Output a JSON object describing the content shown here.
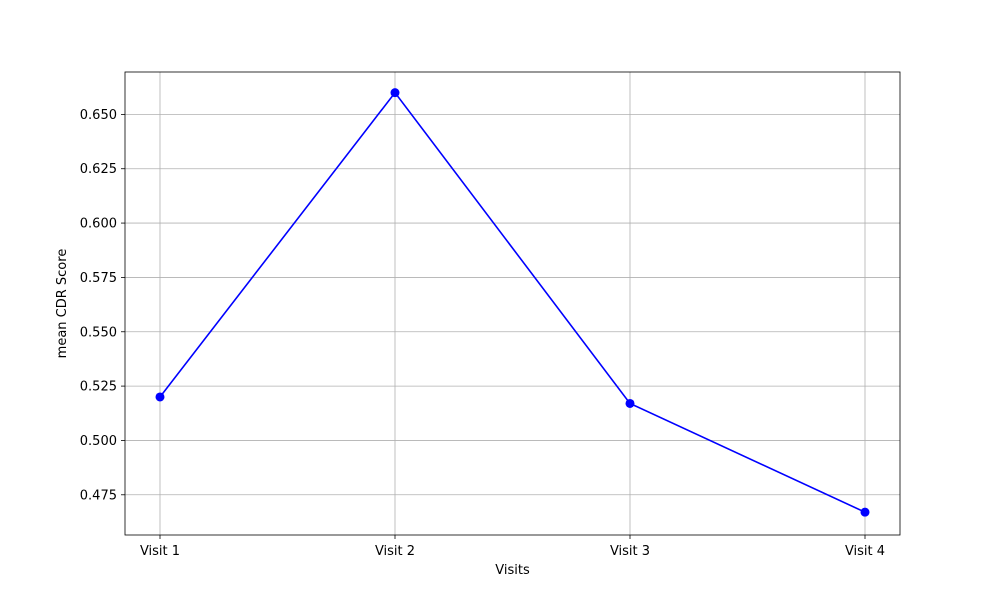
{
  "chart_data": {
    "type": "line",
    "title": "",
    "xlabel": "Visits",
    "ylabel": "mean CDR Score",
    "categories": [
      "Visit 1",
      "Visit 2",
      "Visit 3",
      "Visit 4"
    ],
    "series": [
      {
        "values": [
          0.52,
          0.66,
          0.517,
          0.467
        ],
        "color": "#0000ff",
        "marker": "circle"
      }
    ],
    "ylim": [
      0.4565,
      0.6695
    ],
    "yticks": [
      0.475,
      0.5,
      0.525,
      0.55,
      0.575,
      0.6,
      0.625,
      0.65
    ],
    "ytick_labels": [
      "0.475",
      "0.500",
      "0.525",
      "0.550",
      "0.575",
      "0.600",
      "0.625",
      "0.650"
    ],
    "grid": true,
    "grid_color": "#b0b0b0",
    "legend": "none"
  }
}
